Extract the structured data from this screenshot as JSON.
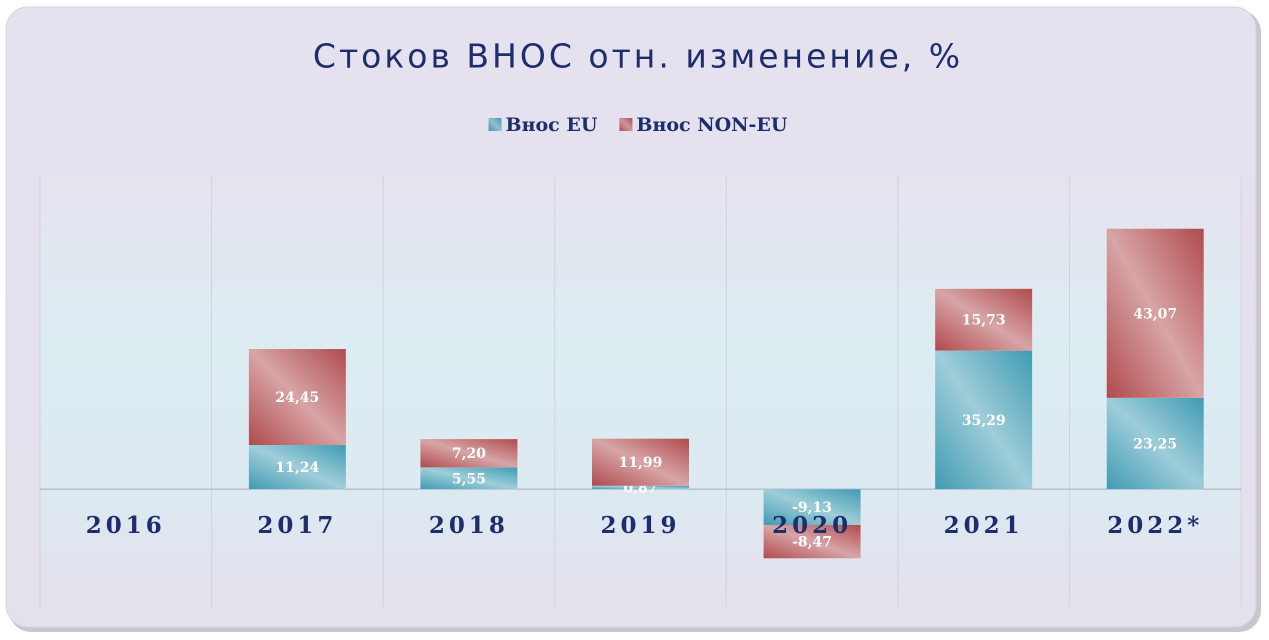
{
  "chart_data": {
    "type": "stacked_bar",
    "title": "Стоков ВНОС отн. изменение, %",
    "categories": [
      "2016",
      "2017",
      "2018",
      "2019",
      "2020",
      "2021",
      "2022*"
    ],
    "series": [
      {
        "name": "Внос EU",
        "color": "#3f9bb3",
        "values": [
          null,
          11.24,
          5.55,
          0.87,
          -9.13,
          35.29,
          23.25
        ],
        "value_labels": [
          null,
          "11,24",
          "5,55",
          "0,87",
          "-9,13",
          "35,29",
          "23,25"
        ]
      },
      {
        "name": "Внос NON-EU",
        "color": "#b04a4d",
        "values": [
          null,
          24.45,
          7.2,
          11.99,
          -8.47,
          15.73,
          43.07
        ],
        "value_labels": [
          null,
          "24,45",
          "7,20",
          "11,99",
          "-8,47",
          "15,73",
          "43,07"
        ]
      }
    ],
    "ylim": [
      -30,
      80
    ]
  }
}
